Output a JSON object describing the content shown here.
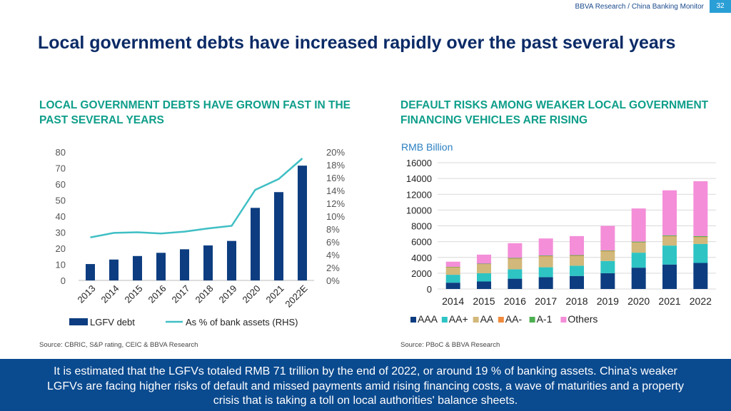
{
  "header": {
    "source_line": "BBVA Research / China Banking Monitor",
    "page_number": "32"
  },
  "page_title": "Local government debts have increased rapidly over the past several years",
  "left_panel": {
    "title": "LOCAL GOVERNMENT DEBTS HAVE GROWN FAST IN THE PAST SEVERAL YEARS",
    "source": "Source: CBRIC, S&P rating, CEIC & BBVA Research"
  },
  "right_panel": {
    "title": "DEFAULT RISKS AMONG WEAKER LOCAL GOVERNMENT FINANCING VEHICLES ARE RISING",
    "source": "Source: PBoC & BBVA Research"
  },
  "footer_text": "It is estimated that the LGFVs totaled RMB 71 trillion by the end of 2022, or around 19 % of banking assets. China's weaker LGFVs are facing higher risks of default and missed payments amid rising financing costs, a wave of maturities and a property crisis that is taking a toll on local authorities' balance sheets.",
  "chart_data": [
    {
      "type": "bar",
      "categories": [
        "2013",
        "2014",
        "2015",
        "2016",
        "2017",
        "2018",
        "2019",
        "2020",
        "2021",
        "2022E"
      ],
      "series": [
        {
          "name": "LGFV debt",
          "type": "bar",
          "axis": "left",
          "color": "#0d3d80",
          "values": [
            10.2,
            13.0,
            15.2,
            17.2,
            19.4,
            21.8,
            24.6,
            45.2,
            55.0,
            71.5
          ]
        },
        {
          "name": "As % of bank assets (RHS)",
          "type": "line",
          "axis": "right",
          "color": "#3fbfc4",
          "values": [
            6.7,
            7.4,
            7.5,
            7.3,
            7.6,
            8.1,
            8.5,
            14.1,
            15.8,
            19.0
          ]
        }
      ],
      "ylim": [
        0,
        80
      ],
      "yticks": [
        "0",
        "10",
        "20",
        "30",
        "40",
        "50",
        "60",
        "70",
        "80"
      ],
      "y2lim": [
        0,
        20
      ],
      "y2ticks": [
        "0%",
        "2%",
        "4%",
        "6%",
        "8%",
        "10%",
        "12%",
        "14%",
        "16%",
        "18%",
        "20%"
      ],
      "grid": false,
      "legend": "bottom"
    },
    {
      "type": "bar",
      "stacked": true,
      "ylabel": "RMB Billion",
      "categories": [
        "2014",
        "2015",
        "2016",
        "2017",
        "2018",
        "2019",
        "2020",
        "2021",
        "2022"
      ],
      "series": [
        {
          "name": "AAA",
          "color": "#0d3d80",
          "values": [
            800,
            950,
            1300,
            1500,
            1650,
            2000,
            2700,
            3100,
            3300
          ]
        },
        {
          "name": "AA+",
          "color": "#2ec4c4",
          "values": [
            1000,
            1050,
            1200,
            1250,
            1300,
            1550,
            1900,
            2400,
            2400
          ]
        },
        {
          "name": "AA",
          "color": "#d2b87a",
          "values": [
            900,
            1100,
            1300,
            1350,
            1200,
            1200,
            1250,
            1150,
            850
          ]
        },
        {
          "name": "AA-",
          "color": "#f08a3c",
          "values": [
            50,
            50,
            60,
            60,
            60,
            60,
            50,
            50,
            50
          ]
        },
        {
          "name": "A-1",
          "color": "#4caf50",
          "values": [
            60,
            60,
            80,
            80,
            80,
            80,
            100,
            100,
            100
          ]
        },
        {
          "name": "Others",
          "color": "#f48ed8",
          "values": [
            650,
            1140,
            1860,
            2160,
            2410,
            3110,
            4200,
            5700,
            6950
          ]
        }
      ],
      "ylim": [
        0,
        16000
      ],
      "yticks": [
        "0",
        "2000",
        "4000",
        "6000",
        "8000",
        "10000",
        "12000",
        "14000",
        "16000"
      ],
      "grid": true,
      "legend": "bottom"
    }
  ]
}
